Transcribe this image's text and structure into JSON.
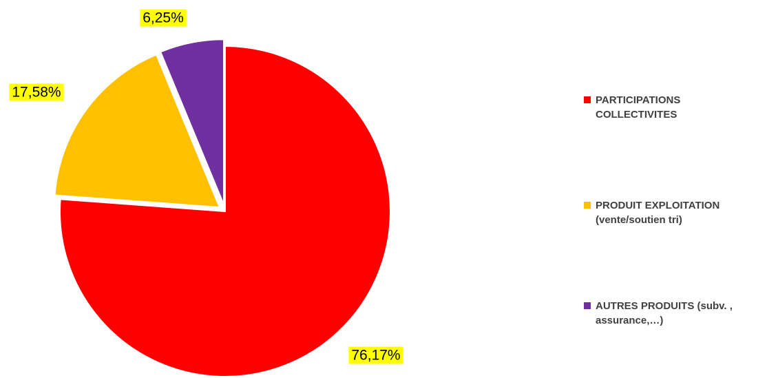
{
  "chart_data": {
    "type": "pie",
    "exploded": true,
    "series": [
      {
        "name": "PARTICIPATIONS COLLECTIVITES",
        "value": 76.17,
        "label": "76,17%",
        "color": "#FF0000"
      },
      {
        "name": "PRODUIT EXPLOITATION (vente/soutien tri)",
        "value": 17.58,
        "label": "17,58%",
        "color": "#FFC000"
      },
      {
        "name": "AUTRES PRODUITS (subv. , assurance,…)",
        "value": 6.25,
        "label": "6,25%",
        "color": "#7030A0"
      }
    ],
    "data_label_background": "#FFFF00",
    "legend": {
      "position": "right",
      "items": [
        {
          "line1": "PARTICIPATIONS",
          "line2": "COLLECTIVITES",
          "color": "#FF0000"
        },
        {
          "line1": "PRODUIT EXPLOITATION",
          "line2": "(vente/soutien tri)",
          "color": "#FFC000"
        },
        {
          "line1": "AUTRES PRODUITS (subv. ,",
          "line2": "assurance,…)",
          "color": "#7030A0"
        }
      ]
    }
  }
}
